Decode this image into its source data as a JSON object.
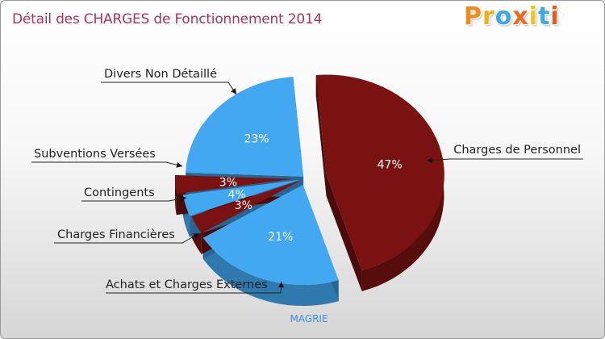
{
  "header": {
    "title": "Détail des CHARGES de Fonctionnement 2014",
    "logo_letters": [
      "P",
      "r",
      "o",
      "x",
      "i",
      "t",
      "i"
    ],
    "logo_colors": [
      "#f08c1e",
      "#e8b219",
      "#3fa9e0",
      "#ef6a1c",
      "#e8c819",
      "#3fa9e0",
      "#e85a1c"
    ]
  },
  "chart_data": {
    "type": "pie",
    "subtitle": "MAGRIE",
    "colors": {
      "personnel": "#7a1212",
      "externes": "#43a8f2"
    },
    "slices": [
      {
        "label": "Charges de Personnel",
        "pct_label": "47%",
        "value": 46.5,
        "color": "#7a1212"
      },
      {
        "label": "Achats et Charges Externes",
        "pct_label": "21%",
        "value": 21.0,
        "color": "#43a8f2"
      },
      {
        "label": "Charges Financières",
        "pct_label": "3%",
        "value": 3.0,
        "color": "#7a1212"
      },
      {
        "label": "Contingents",
        "pct_label": "4%",
        "value": 3.5,
        "color": "#43a8f2"
      },
      {
        "label": "Subventions Versées",
        "pct_label": "3%",
        "value": 3.0,
        "color": "#7a1212"
      },
      {
        "label": "Divers Non Détaillé",
        "pct_label": "23%",
        "value": 23.0,
        "color": "#43a8f2"
      }
    ]
  }
}
